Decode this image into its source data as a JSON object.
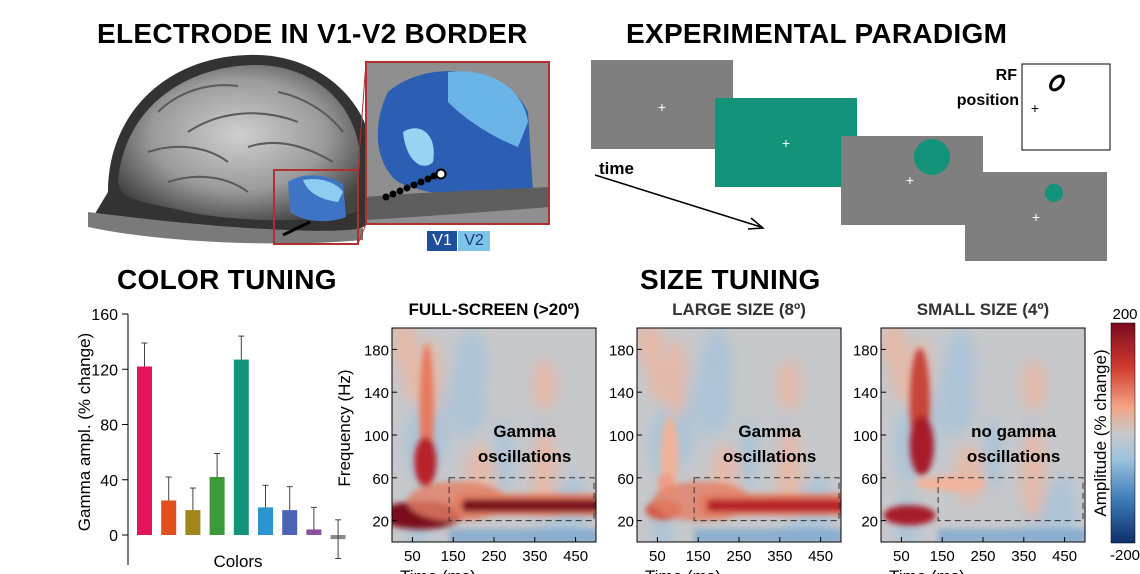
{
  "titles": {
    "electrode": "ELECTRODE IN V1-V2 BORDER",
    "paradigm": "EXPERIMENTAL PARADIGM",
    "color_tuning": "COLOR TUNING",
    "size_tuning": "SIZE TUNING"
  },
  "electrode_panel": {
    "legend": [
      {
        "label": "V1",
        "color": "#1f4f9a"
      },
      {
        "label": "V2",
        "color": "#7cc4ea"
      }
    ]
  },
  "paradigm": {
    "time_label": "time",
    "rf_label_line1": "RF",
    "rf_label_line2": "position",
    "stimulus_color": "#12937a",
    "gray_color": "#7f7f7f"
  },
  "color_tuning": {
    "ylabel": "Gamma ampl.  (% change)",
    "xlabel": "Colors",
    "ylim": [
      0,
      160
    ],
    "yticks": [
      "0",
      "40",
      "80",
      "120",
      "160"
    ],
    "values": [
      122,
      25,
      18,
      42,
      127,
      20,
      18,
      4,
      -3
    ],
    "errors": [
      17,
      17,
      16,
      17,
      17,
      16,
      17,
      16,
      14
    ],
    "bar_colors": [
      "#e5145f",
      "#e0501f",
      "#a0861a",
      "#3a9a37",
      "#13937a",
      "#2a95cf",
      "#4b63b7",
      "#8a4f9e",
      "#8a8a8a"
    ]
  },
  "size_tuning": {
    "ylabel": "Frequency (Hz)",
    "xlabel": "Time (ms)",
    "yticks": [
      "20",
      "60",
      "100",
      "140",
      "180"
    ],
    "xticks": [
      "50",
      "150",
      "250",
      "350",
      "450"
    ],
    "panels": [
      {
        "title": "FULL-SCREEN (>20º)",
        "annotation_line1": "Gamma",
        "annotation_line2": "oscillations",
        "gamma": 1.0
      },
      {
        "title": "LARGE SIZE (8º)",
        "annotation_line1": "Gamma",
        "annotation_line2": "oscillations",
        "gamma": 0.65
      },
      {
        "title": "SMALL SIZE (4º)",
        "annotation_line1": "no gamma",
        "annotation_line2": "oscillations",
        "gamma": 0.0
      }
    ],
    "colorbar": {
      "label": "Amplitude (% change)",
      "max": "200",
      "min": "-200"
    }
  }
}
